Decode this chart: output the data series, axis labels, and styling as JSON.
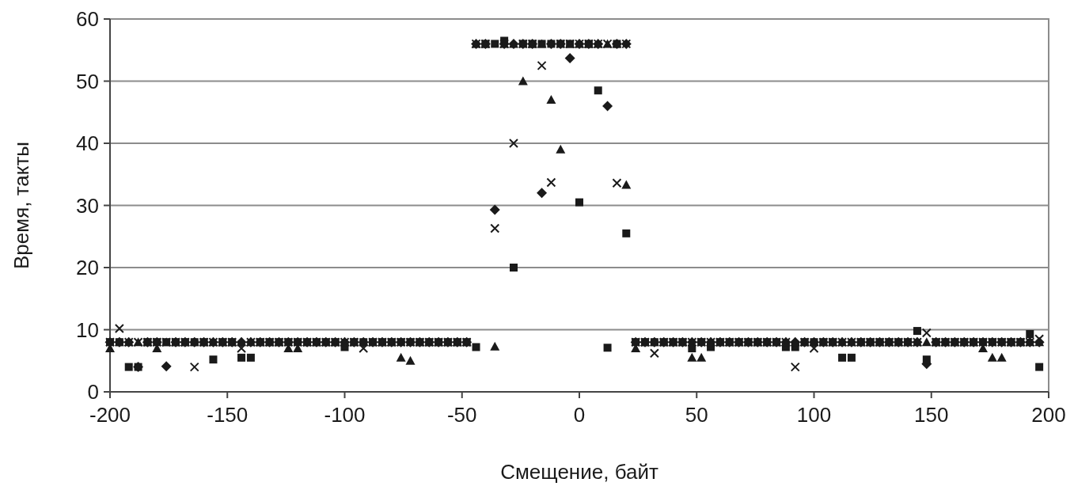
{
  "chart_data": {
    "type": "scatter",
    "xlabel": "Смещение, байт",
    "ylabel": "Время, такты",
    "xlim": [
      -200,
      200
    ],
    "xticks": [
      -200,
      -150,
      -100,
      -50,
      0,
      50,
      100,
      150,
      200
    ],
    "ylim": [
      0,
      60
    ],
    "yticks": [
      0,
      10,
      20,
      30,
      40,
      50,
      60
    ],
    "grid": "y",
    "x": [
      -200,
      -196,
      -192,
      -188,
      -184,
      -180,
      -176,
      -172,
      -168,
      -164,
      -160,
      -156,
      -152,
      -148,
      -144,
      -140,
      -136,
      -132,
      -128,
      -124,
      -120,
      -116,
      -112,
      -108,
      -104,
      -100,
      -96,
      -92,
      -88,
      -84,
      -80,
      -76,
      -72,
      -68,
      -64,
      -60,
      -56,
      -52,
      -48,
      -44,
      -40,
      -36,
      -32,
      -28,
      -24,
      -20,
      -16,
      -12,
      -8,
      -4,
      0,
      4,
      8,
      12,
      16,
      20,
      24,
      28,
      32,
      36,
      40,
      44,
      48,
      52,
      56,
      60,
      64,
      68,
      72,
      76,
      80,
      84,
      88,
      92,
      96,
      100,
      104,
      108,
      112,
      116,
      120,
      124,
      128,
      132,
      136,
      140,
      144,
      148,
      152,
      156,
      160,
      164,
      168,
      172,
      176,
      180,
      184,
      188,
      192,
      196
    ],
    "series": [
      {
        "color": "#1a1a1a",
        "marker": "diamond",
        "values": [
          8,
          8,
          8,
          4,
          8,
          8,
          4.1,
          8,
          8,
          8,
          8,
          8,
          8,
          8,
          8,
          8,
          8,
          8,
          8,
          8,
          8,
          8,
          8,
          8,
          8,
          8,
          8,
          8,
          8,
          8,
          8,
          8,
          8,
          8,
          8,
          8,
          8,
          8,
          8,
          56,
          56,
          29.3,
          56,
          56,
          56,
          56,
          32,
          56,
          56,
          53.7,
          56,
          56,
          56,
          46,
          56,
          56,
          8,
          8,
          8,
          8,
          8,
          8,
          8,
          8,
          8,
          8,
          8,
          8,
          8,
          8,
          8,
          8,
          8,
          8,
          8,
          8,
          8,
          8,
          8,
          8,
          8,
          8,
          8,
          8,
          8,
          8,
          8,
          4.5,
          8,
          8,
          8,
          8,
          8,
          8,
          8,
          8,
          8,
          8,
          8,
          8
        ]
      },
      {
        "color": "#1a1a1a",
        "marker": "square",
        "values": [
          8,
          8,
          4,
          4,
          8,
          8,
          8,
          8,
          8,
          8,
          8,
          5.2,
          8,
          8,
          5.5,
          5.5,
          8,
          8,
          8,
          8,
          8,
          8,
          8,
          8,
          8,
          7.2,
          8,
          8,
          8,
          8,
          8,
          8,
          8,
          8,
          8,
          8,
          8,
          8,
          8,
          7.2,
          56,
          56,
          56.5,
          20,
          56,
          56,
          56,
          56,
          56,
          56,
          30.5,
          56,
          48.5,
          7.1,
          56,
          25.5,
          8,
          8,
          8,
          8,
          8,
          8,
          7,
          8,
          7.2,
          8,
          8,
          8,
          8,
          8,
          8,
          8,
          7.2,
          7.2,
          8,
          8,
          8,
          8,
          5.5,
          5.5,
          8,
          8,
          8,
          8,
          8,
          8,
          9.8,
          5.2,
          8,
          8,
          8,
          8,
          8,
          8,
          8,
          8,
          8,
          8,
          9.3,
          4
        ]
      },
      {
        "color": "#1a1a1a",
        "marker": "triangle",
        "values": [
          7,
          8,
          8,
          8,
          8,
          7,
          8,
          8,
          8,
          8,
          8,
          8,
          8,
          8,
          8,
          8,
          8,
          8,
          8,
          7,
          7,
          8,
          8,
          8,
          8,
          8,
          8,
          8,
          8,
          8,
          8,
          5.5,
          5,
          8,
          8,
          8,
          8,
          8,
          8,
          56,
          56,
          7.3,
          56,
          56,
          50,
          56,
          56,
          47,
          39,
          56,
          56,
          56,
          56,
          56,
          56,
          33.3,
          7,
          8,
          8,
          8,
          8,
          8,
          5.5,
          5.5,
          8,
          8,
          8,
          8,
          8,
          8,
          8,
          8,
          8,
          8,
          8,
          8,
          8,
          8,
          8,
          8,
          8,
          8,
          8,
          8,
          8,
          8,
          8,
          8,
          8,
          8,
          8,
          8,
          8,
          7,
          5.5,
          5.5,
          8,
          8,
          8,
          8
        ]
      },
      {
        "color": "#1a1a1a",
        "marker": "cross",
        "values": [
          8,
          10.2,
          8,
          8,
          8,
          8,
          8,
          8,
          8,
          4,
          8,
          8,
          8,
          8,
          7,
          8,
          8,
          8,
          8,
          8,
          8,
          8,
          8,
          8,
          8,
          8,
          8,
          7,
          8,
          8,
          8,
          8,
          8,
          8,
          8,
          8,
          8,
          8,
          8,
          56,
          56,
          26.3,
          56,
          40,
          56,
          56,
          52.5,
          33.7,
          56,
          56,
          56,
          56,
          56,
          56,
          33.6,
          56,
          8,
          8,
          6.2,
          8,
          8,
          8,
          8,
          8,
          8,
          8,
          8,
          8,
          8,
          8,
          8,
          8,
          8,
          4,
          8,
          7,
          8,
          8,
          8,
          8,
          8,
          8,
          8,
          8,
          8,
          8,
          8,
          9.5,
          8,
          8,
          8,
          8,
          8,
          8,
          8,
          8,
          8,
          8,
          8,
          8.5
        ]
      }
    ]
  }
}
